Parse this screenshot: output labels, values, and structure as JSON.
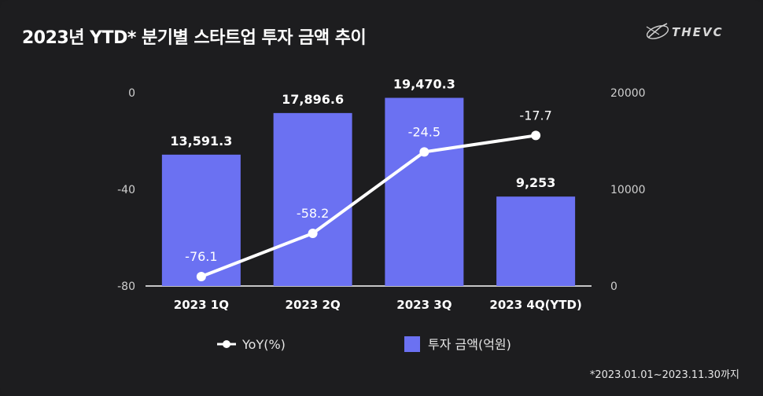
{
  "title": "2023년 YTD* 분기별 스타트업 투자 금액 추이",
  "logo": {
    "text": "THEVC",
    "icon": "thevc-swoosh-icon"
  },
  "footnote": "*2023.01.01~2023.11.30까지",
  "colors": {
    "bar": "#6b71f2",
    "line": "#ffffff",
    "background": "#1d1d1f",
    "axis_text": "#cfcfcf",
    "grid": "#ffffff"
  },
  "chart_data": {
    "type": "bar+line",
    "categories": [
      "2023 1Q",
      "2023 2Q",
      "2023 3Q",
      "2023 4Q(YTD)"
    ],
    "series": [
      {
        "name": "투자 금액(억원)",
        "type": "bar",
        "axis": "right",
        "values": [
          13591.3,
          17896.6,
          19470.3,
          9253
        ],
        "labels": [
          "13,591.3",
          "17,896.6",
          "19,470.3",
          "9,253"
        ]
      },
      {
        "name": "YoY(%)",
        "type": "line",
        "axis": "left",
        "values": [
          -76.1,
          -58.2,
          -24.5,
          -17.7
        ],
        "labels": [
          "-76.1",
          "-58.2",
          "-24.5",
          "-17.7"
        ]
      }
    ],
    "left_axis": {
      "range": [
        -80,
        0
      ],
      "ticks": [
        "0",
        "-40",
        "-80"
      ],
      "tick_values": [
        0,
        -40,
        -80
      ]
    },
    "right_axis": {
      "range": [
        0,
        20000
      ],
      "ticks": [
        "20000",
        "10000",
        "0"
      ],
      "tick_values": [
        20000,
        10000,
        0
      ]
    },
    "legend": {
      "position": "bottom-center",
      "items": [
        "YoY(%)",
        "투자 금액(억원)"
      ]
    }
  }
}
